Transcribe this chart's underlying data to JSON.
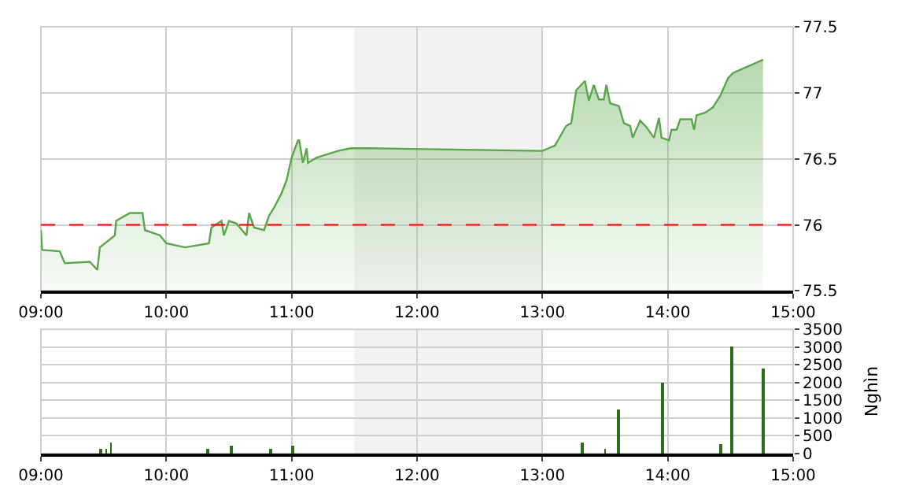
{
  "chart_data": [
    {
      "type": "area",
      "x": [
        9.0,
        9.01,
        9.15,
        9.19,
        9.39,
        9.45,
        9.47,
        9.59,
        9.6,
        9.71,
        9.81,
        9.83,
        9.95,
        10.0,
        10.15,
        10.34,
        10.36,
        10.44,
        10.46,
        10.5,
        10.56,
        10.64,
        10.66,
        10.7,
        10.78,
        10.82,
        10.86,
        10.92,
        10.96,
        11.0,
        11.05,
        11.06,
        11.09,
        11.12,
        11.13,
        11.2,
        11.37,
        11.47,
        11.61,
        13.0,
        13.1,
        13.19,
        13.23,
        13.27,
        13.34,
        13.37,
        13.41,
        13.45,
        13.49,
        13.51,
        13.54,
        13.61,
        13.65,
        13.7,
        13.72,
        13.78,
        13.83,
        13.89,
        13.93,
        13.95,
        14.01,
        14.03,
        14.07,
        14.1,
        14.19,
        14.21,
        14.23,
        14.3,
        14.36,
        14.42,
        14.48,
        14.52,
        14.76
      ],
      "series": [
        {
          "color": "#5aa64a",
          "values": [
            75.96,
            75.81,
            75.8,
            75.71,
            75.72,
            75.66,
            75.83,
            75.92,
            76.03,
            76.09,
            76.09,
            75.96,
            75.92,
            75.86,
            75.83,
            75.86,
            75.98,
            76.03,
            75.92,
            76.03,
            76.01,
            75.92,
            76.09,
            75.98,
            75.96,
            76.07,
            76.13,
            76.24,
            76.34,
            76.51,
            76.64,
            76.64,
            76.47,
            76.58,
            76.47,
            76.51,
            76.56,
            76.58,
            76.58,
            76.56,
            76.6,
            76.75,
            76.77,
            77.02,
            77.09,
            76.94,
            77.06,
            76.95,
            76.95,
            77.06,
            76.92,
            76.9,
            76.77,
            76.75,
            76.66,
            76.79,
            76.74,
            76.66,
            76.81,
            76.66,
            76.64,
            76.72,
            76.72,
            76.8,
            76.8,
            76.72,
            76.83,
            76.85,
            76.89,
            76.98,
            77.11,
            77.15,
            77.25
          ]
        }
      ],
      "xlim": [
        9,
        15
      ],
      "xticks": [
        {
          "value": 9,
          "label": "09:00"
        },
        {
          "value": 10,
          "label": "10:00"
        },
        {
          "value": 11,
          "label": "11:00"
        },
        {
          "value": 12,
          "label": "12:00"
        },
        {
          "value": 13,
          "label": "13:00"
        },
        {
          "value": 14,
          "label": "14:00"
        },
        {
          "value": 15,
          "label": "15:00"
        }
      ],
      "ylim": [
        75.5,
        77.5
      ],
      "yticks": [
        75.5,
        76,
        76.5,
        77,
        77.5
      ],
      "bands": [
        {
          "axis": "x",
          "from": 11.5,
          "to": 13,
          "color": "#f2f2f2"
        }
      ],
      "ref_lines": [
        {
          "axis": "y",
          "value": 76,
          "color": "#ff0000",
          "line_style": "dashed"
        }
      ],
      "grid": true,
      "legend": false
    },
    {
      "type": "bar",
      "x": [
        9.48,
        9.52,
        9.56,
        10.33,
        10.52,
        10.83,
        11.01,
        13.32,
        13.5,
        13.61,
        13.96,
        14.42,
        14.51,
        14.76
      ],
      "series": [
        {
          "color": "#2d6e1e",
          "values": [
            150,
            150,
            300,
            150,
            200,
            150,
            200,
            300,
            150,
            1250,
            2000,
            250,
            3000,
            2400
          ]
        }
      ],
      "xlim": [
        9,
        15
      ],
      "xticks": [
        {
          "value": 9,
          "label": "09:00"
        },
        {
          "value": 10,
          "label": "10:00"
        },
        {
          "value": 11,
          "label": "11:00"
        },
        {
          "value": 12,
          "label": "12:00"
        },
        {
          "value": 13,
          "label": "13:00"
        },
        {
          "value": 14,
          "label": "14:00"
        },
        {
          "value": 15,
          "label": "15:00"
        }
      ],
      "ylim": [
        0,
        3500
      ],
      "yticks": [
        0,
        500,
        1000,
        1500,
        2000,
        2500,
        3000,
        3500
      ],
      "ylabel": "Nghìn",
      "bands": [
        {
          "axis": "x",
          "from": 11.5,
          "to": 13,
          "color": "#f2f2f2"
        }
      ],
      "grid": true,
      "legend": false
    }
  ]
}
